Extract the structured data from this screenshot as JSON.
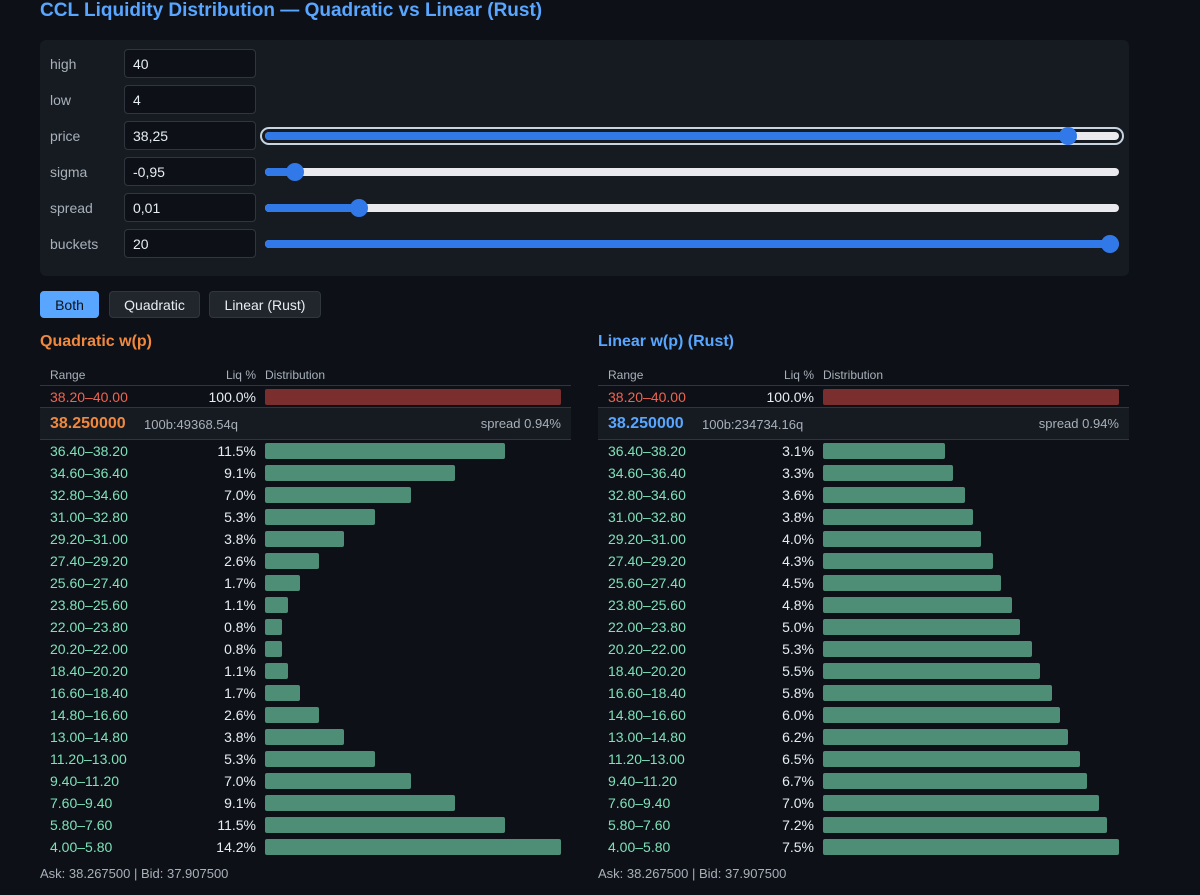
{
  "title": "CCL Liquidity Distribution — Quadratic vs Linear (Rust)",
  "controls": [
    {
      "label": "high",
      "value": "40"
    },
    {
      "label": "low",
      "value": "4"
    },
    {
      "label": "price",
      "value": "38,25",
      "slider_level": 0.94
    },
    {
      "label": "sigma",
      "value": "-0,95",
      "slider_level": 0.035
    },
    {
      "label": "spread",
      "value": "0,01",
      "slider_level": 0.11
    },
    {
      "label": "buckets",
      "value": "20",
      "slider_level": 1.0
    }
  ],
  "view_buttons": [
    "Both",
    "Quadratic",
    "Linear (Rust)"
  ],
  "active_view": "Both",
  "colors": {
    "quadratic": "#f0883e",
    "linear": "#58a6ff",
    "bid_bar": "#4e8d76",
    "ask_bar": "#7a2e2e"
  },
  "columns": {
    "range": "Range",
    "liq": "Liq %",
    "dist": "Distribution"
  },
  "panels": [
    {
      "title": "Quadratic w(p)",
      "ask": {
        "range": "38.20–40.00",
        "pct": "100.0%",
        "value": 100
      },
      "mid": {
        "price": "38.250000",
        "depth": "100b:49368.54q",
        "spread": "spread 0.94%"
      },
      "rows": [
        {
          "range": "36.40–38.20",
          "pct": "11.5%",
          "value": 11.5
        },
        {
          "range": "34.60–36.40",
          "pct": "9.1%",
          "value": 9.1
        },
        {
          "range": "32.80–34.60",
          "pct": "7.0%",
          "value": 7.0
        },
        {
          "range": "31.00–32.80",
          "pct": "5.3%",
          "value": 5.3
        },
        {
          "range": "29.20–31.00",
          "pct": "3.8%",
          "value": 3.8
        },
        {
          "range": "27.40–29.20",
          "pct": "2.6%",
          "value": 2.6
        },
        {
          "range": "25.60–27.40",
          "pct": "1.7%",
          "value": 1.7
        },
        {
          "range": "23.80–25.60",
          "pct": "1.1%",
          "value": 1.1
        },
        {
          "range": "22.00–23.80",
          "pct": "0.8%",
          "value": 0.8
        },
        {
          "range": "20.20–22.00",
          "pct": "0.8%",
          "value": 0.8
        },
        {
          "range": "18.40–20.20",
          "pct": "1.1%",
          "value": 1.1
        },
        {
          "range": "16.60–18.40",
          "pct": "1.7%",
          "value": 1.7
        },
        {
          "range": "14.80–16.60",
          "pct": "2.6%",
          "value": 2.6
        },
        {
          "range": "13.00–14.80",
          "pct": "3.8%",
          "value": 3.8
        },
        {
          "range": "11.20–13.00",
          "pct": "5.3%",
          "value": 5.3
        },
        {
          "range": "9.40–11.20",
          "pct": "7.0%",
          "value": 7.0
        },
        {
          "range": "7.60–9.40",
          "pct": "9.1%",
          "value": 9.1
        },
        {
          "range": "5.80–7.60",
          "pct": "11.5%",
          "value": 11.5
        },
        {
          "range": "4.00–5.80",
          "pct": "14.2%",
          "value": 14.2
        }
      ],
      "footer": "Ask: 38.267500 | Bid: 37.907500"
    },
    {
      "title": "Linear w(p)  (Rust)",
      "ask": {
        "range": "38.20–40.00",
        "pct": "100.0%",
        "value": 100
      },
      "mid": {
        "price": "38.250000",
        "depth": "100b:234734.16q",
        "spread": "spread 0.94%"
      },
      "rows": [
        {
          "range": "36.40–38.20",
          "pct": "3.1%",
          "value": 3.1
        },
        {
          "range": "34.60–36.40",
          "pct": "3.3%",
          "value": 3.3
        },
        {
          "range": "32.80–34.60",
          "pct": "3.6%",
          "value": 3.6
        },
        {
          "range": "31.00–32.80",
          "pct": "3.8%",
          "value": 3.8
        },
        {
          "range": "29.20–31.00",
          "pct": "4.0%",
          "value": 4.0
        },
        {
          "range": "27.40–29.20",
          "pct": "4.3%",
          "value": 4.3
        },
        {
          "range": "25.60–27.40",
          "pct": "4.5%",
          "value": 4.5
        },
        {
          "range": "23.80–25.60",
          "pct": "4.8%",
          "value": 4.8
        },
        {
          "range": "22.00–23.80",
          "pct": "5.0%",
          "value": 5.0
        },
        {
          "range": "20.20–22.00",
          "pct": "5.3%",
          "value": 5.3
        },
        {
          "range": "18.40–20.20",
          "pct": "5.5%",
          "value": 5.5
        },
        {
          "range": "16.60–18.40",
          "pct": "5.8%",
          "value": 5.8
        },
        {
          "range": "14.80–16.60",
          "pct": "6.0%",
          "value": 6.0
        },
        {
          "range": "13.00–14.80",
          "pct": "6.2%",
          "value": 6.2
        },
        {
          "range": "11.20–13.00",
          "pct": "6.5%",
          "value": 6.5
        },
        {
          "range": "9.40–11.20",
          "pct": "6.7%",
          "value": 6.7
        },
        {
          "range": "7.60–9.40",
          "pct": "7.0%",
          "value": 7.0
        },
        {
          "range": "5.80–7.60",
          "pct": "7.2%",
          "value": 7.2
        },
        {
          "range": "4.00–5.80",
          "pct": "7.5%",
          "value": 7.5
        }
      ],
      "footer": "Ask: 38.267500 | Bid: 37.907500"
    }
  ]
}
